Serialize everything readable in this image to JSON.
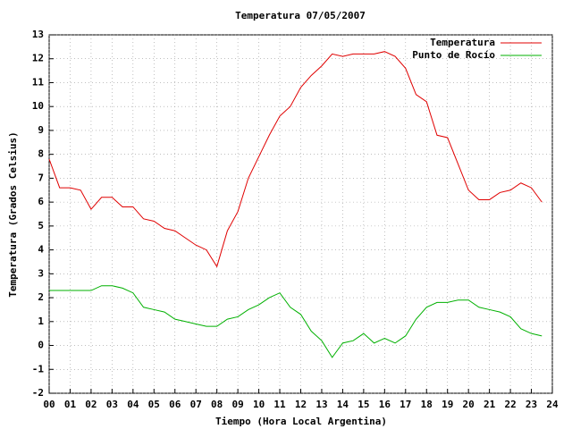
{
  "chart_data": {
    "type": "line",
    "title": "Temperatura 07/05/2007",
    "x_label": "Tiempo (Hora Local Argentina)",
    "y_label": "Temperatura (Grados Celsius)",
    "x": [
      0,
      0.5,
      1,
      1.5,
      2,
      2.5,
      3,
      3.5,
      4,
      4.5,
      5,
      5.5,
      6,
      6.5,
      7,
      7.5,
      8,
      8.5,
      9,
      9.5,
      10,
      10.5,
      11,
      11.5,
      12,
      12.5,
      13,
      13.5,
      14,
      14.5,
      15,
      15.5,
      16,
      16.5,
      17,
      17.5,
      18,
      18.5,
      19,
      19.5,
      20,
      20.5,
      21,
      21.5,
      22,
      22.5,
      23,
      23.5
    ],
    "series": [
      {
        "name": "Temperatura",
        "color": "#e00000",
        "values": [
          7.8,
          6.6,
          6.6,
          6.5,
          5.7,
          6.2,
          6.2,
          5.8,
          5.8,
          5.3,
          5.2,
          4.9,
          4.8,
          4.5,
          4.2,
          4.0,
          3.3,
          4.8,
          5.6,
          7.0,
          7.9,
          8.8,
          9.6,
          10.0,
          10.8,
          11.3,
          11.7,
          12.2,
          12.1,
          12.2,
          12.2,
          12.2,
          12.3,
          12.1,
          11.6,
          10.5,
          10.2,
          8.8,
          8.7,
          7.6,
          6.5,
          6.1,
          6.1,
          6.4,
          6.5,
          6.8,
          6.6,
          6.0
        ]
      },
      {
        "name": "Punto de Rocío",
        "color": "#00b000",
        "values": [
          2.3,
          2.3,
          2.3,
          2.3,
          2.3,
          2.5,
          2.5,
          2.4,
          2.2,
          1.6,
          1.5,
          1.4,
          1.1,
          1.0,
          0.9,
          0.8,
          0.8,
          1.1,
          1.2,
          1.5,
          1.7,
          2.0,
          2.2,
          1.6,
          1.3,
          0.6,
          0.2,
          -0.5,
          0.1,
          0.2,
          0.5,
          0.1,
          0.3,
          0.1,
          0.4,
          1.1,
          1.6,
          1.8,
          1.8,
          1.9,
          1.9,
          1.6,
          1.5,
          1.4,
          1.2,
          0.7,
          0.5,
          0.4
        ]
      }
    ],
    "xlim": [
      0,
      24
    ],
    "xticks": [
      {
        "value": 0,
        "label": "00"
      },
      {
        "value": 1,
        "label": "01"
      },
      {
        "value": 2,
        "label": "02"
      },
      {
        "value": 3,
        "label": "03"
      },
      {
        "value": 4,
        "label": "04"
      },
      {
        "value": 5,
        "label": "05"
      },
      {
        "value": 6,
        "label": "06"
      },
      {
        "value": 7,
        "label": "07"
      },
      {
        "value": 8,
        "label": "08"
      },
      {
        "value": 9,
        "label": "09"
      },
      10,
      11,
      12,
      13,
      14,
      15,
      16,
      17,
      18,
      19,
      20,
      21,
      22,
      23,
      24
    ],
    "ylim": [
      -2,
      13
    ],
    "yticks": [
      -2,
      -1,
      0,
      1,
      2,
      3,
      4,
      5,
      6,
      7,
      8,
      9,
      10,
      11,
      12,
      13
    ],
    "grid": true,
    "legend": "top-right"
  }
}
